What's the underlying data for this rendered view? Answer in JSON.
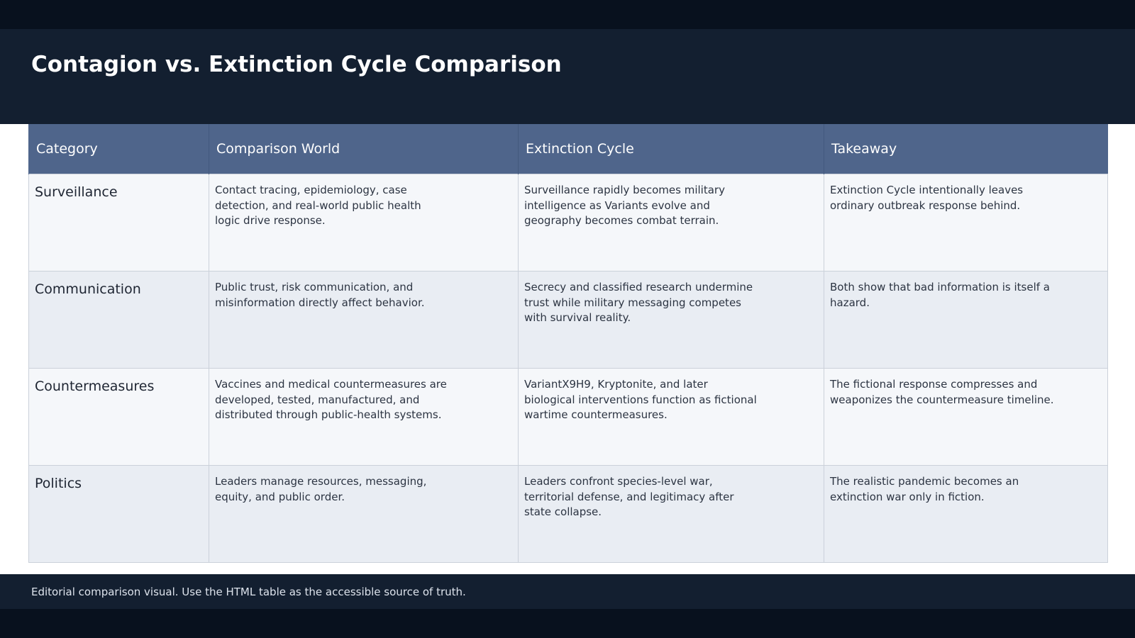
{
  "page": {
    "title": "Contagion vs. Extinction Cycle Comparison",
    "footer_note": "Editorial comparison visual. Use the HTML table as the accessible source of truth."
  },
  "table": {
    "headers": [
      "Category",
      "Comparison World",
      "Extinction Cycle",
      "Takeaway"
    ],
    "rows": [
      {
        "category": "Surveillance",
        "comparison_world": "Contact tracing, epidemiology, case detection, and real-world public health logic drive response.",
        "extinction_cycle": "Surveillance rapidly becomes military intelligence as Variants evolve and geography becomes combat terrain.",
        "takeaway": "Extinction Cycle intentionally leaves ordinary outbreak response behind."
      },
      {
        "category": "Communication",
        "comparison_world": "Public trust, risk communication, and misinformation directly affect behavior.",
        "extinction_cycle": "Secrecy and classified research undermine trust while military messaging competes with survival reality.",
        "takeaway": "Both show that bad information is itself a hazard."
      },
      {
        "category": "Countermeasures",
        "comparison_world": "Vaccines and medical countermeasures are developed, tested, manufactured, and distributed through public-health systems.",
        "extinction_cycle": "VariantX9H9, Kryptonite, and later biological interventions function as fictional wartime countermeasures.",
        "takeaway": "The fictional response compresses and weaponizes the countermeasure timeline."
      },
      {
        "category": "Politics",
        "comparison_world": "Leaders manage resources, messaging, equity, and public order.",
        "extinction_cycle": "Leaders confront species-level war, territorial defense, and legitimacy after state collapse.",
        "takeaway": "The realistic pandemic becomes an extinction war only in fiction."
      }
    ]
  },
  "colors": {
    "header_band": "#131f30",
    "edge_band": "#08111e",
    "table_header": "#4f658b",
    "row_light": "#f5f7fa",
    "row_alt": "#e9edf3"
  }
}
